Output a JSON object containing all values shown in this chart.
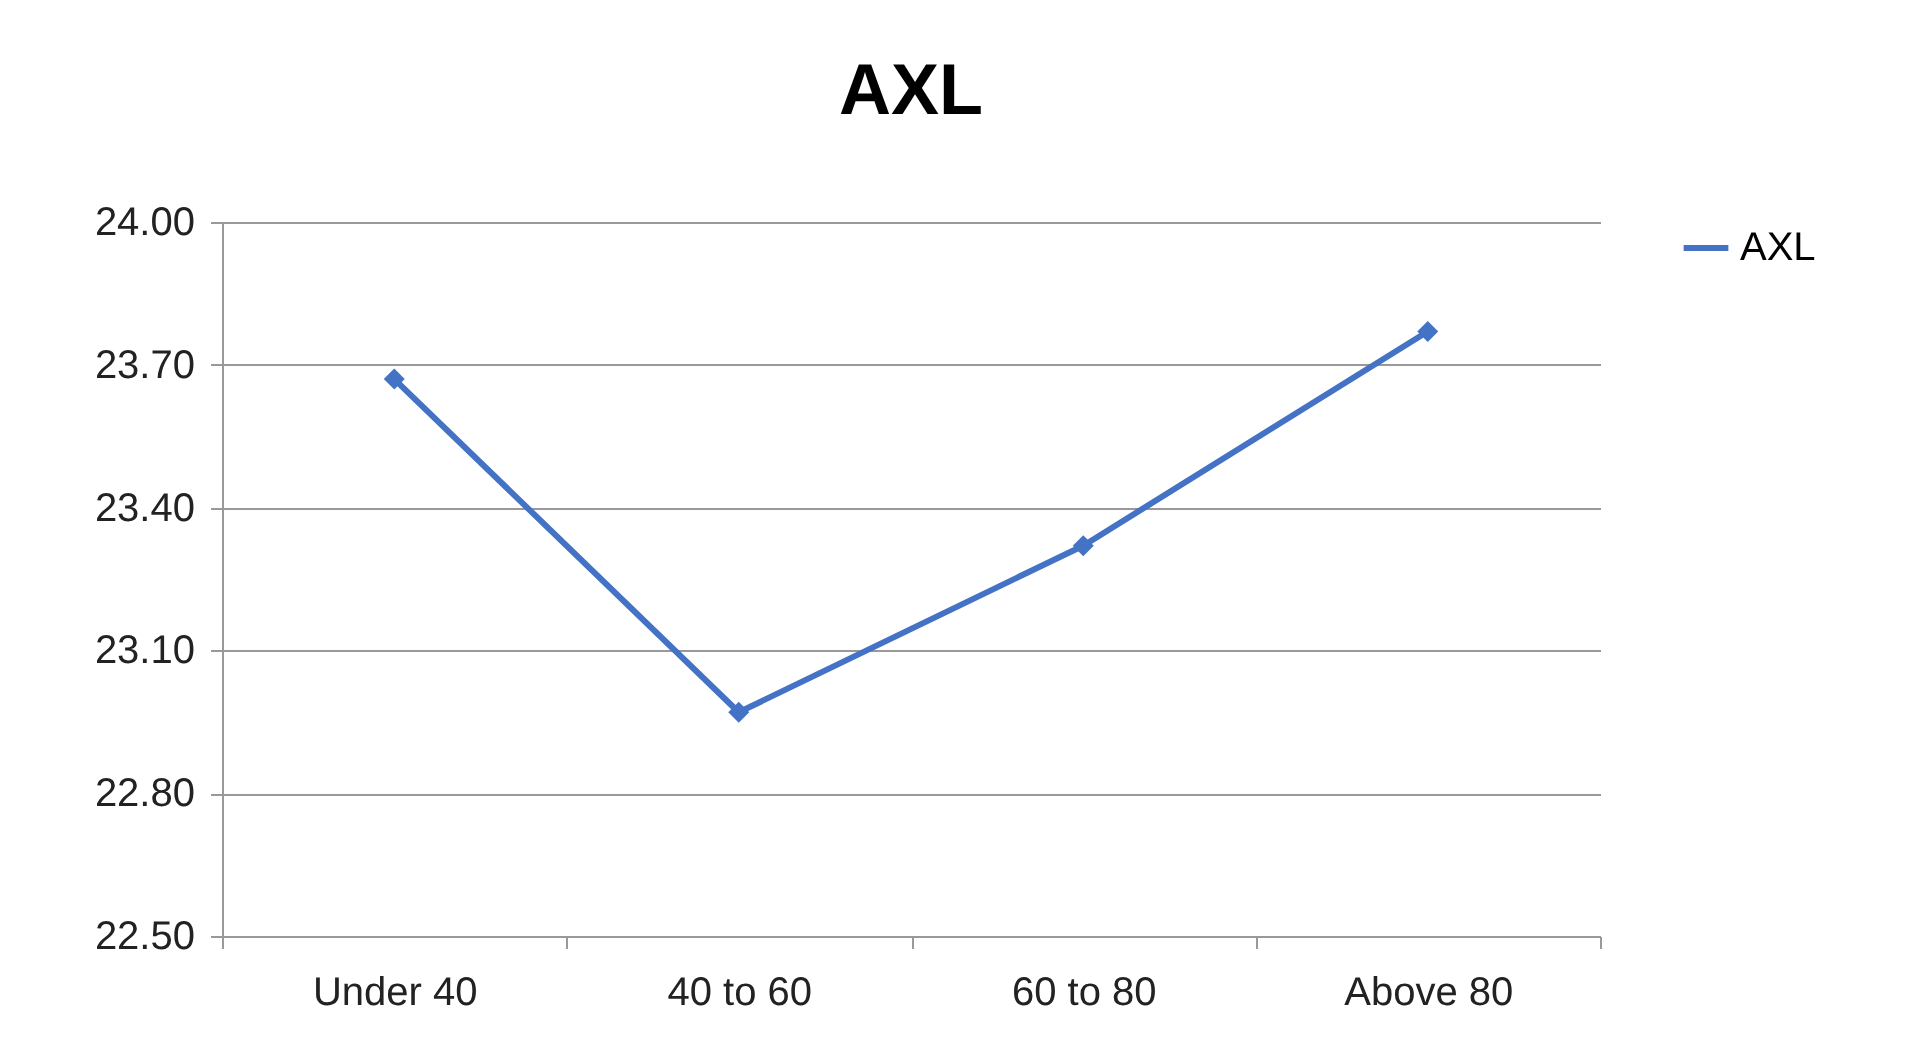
{
  "chart_data": {
    "type": "line",
    "title": "AXL",
    "categories": [
      "Under 40",
      "40 to 60",
      "60 to 80",
      "Above 80"
    ],
    "series": [
      {
        "name": "AXL",
        "color": "#4472c4",
        "values": [
          23.67,
          22.97,
          23.32,
          23.77
        ]
      }
    ],
    "ylim": [
      22.5,
      24
    ],
    "yticks": [
      {
        "value": 22.5,
        "label": "22.50"
      },
      {
        "value": 22.8,
        "label": "22.80"
      },
      {
        "value": 23.1,
        "label": "23.10"
      },
      {
        "value": 23.4,
        "label": "23.40"
      },
      {
        "value": 23.7,
        "label": "23.70"
      },
      {
        "value": 24,
        "label": "24.00"
      }
    ],
    "grid": "y",
    "legend": "right",
    "marker": "diamond",
    "line_style": "solid"
  }
}
